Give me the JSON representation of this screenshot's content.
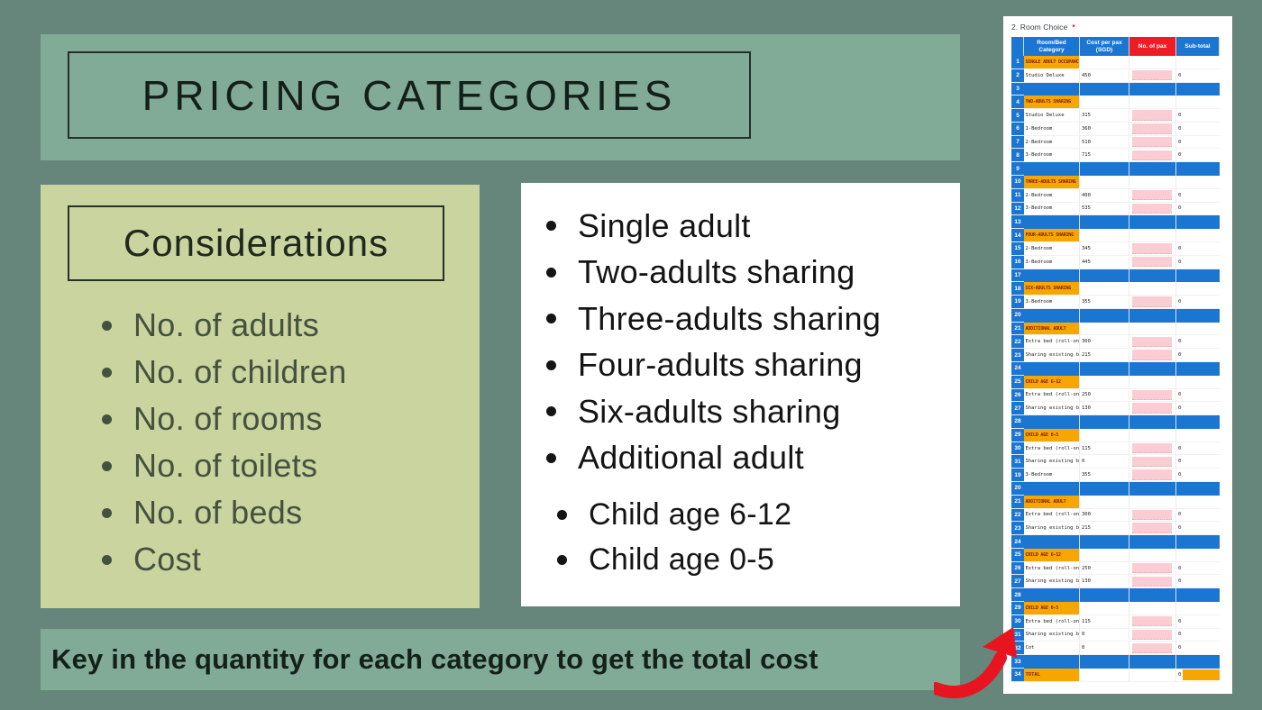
{
  "slide": {
    "title": "PRICING CATEGORIES",
    "considerations": {
      "heading": "Considerations",
      "items": [
        "No. of adults",
        "No. of children",
        "No. of rooms",
        "No. of toilets",
        "No. of beds",
        "Cost"
      ]
    },
    "categories_primary": [
      "Single adult",
      "Two-adults sharing",
      "Three-adults sharing",
      "Four-adults sharing",
      "Six-adults sharing",
      "Additional adult"
    ],
    "categories_secondary": [
      "Child age 6-12",
      "Child age 0-5"
    ],
    "footer": "Key in the quantity for each category to get the total cost"
  },
  "form": {
    "question_label": "2. Room Choice",
    "required_marker": "*",
    "columns": [
      "Room/Bed Category",
      "Cost per pax (SGD)",
      "No. of pax",
      "Sub-total"
    ],
    "rows": [
      {
        "num": "1",
        "type": "section",
        "label": "SINGLE ADULT OCCUPANCY"
      },
      {
        "num": "2",
        "type": "data",
        "label": "Studio Deluxe",
        "cost": "450",
        "subtotal": "0"
      },
      {
        "num": "3",
        "type": "separator"
      },
      {
        "num": "4",
        "type": "section",
        "label": "TWO-ADULTS SHARING"
      },
      {
        "num": "5",
        "type": "data",
        "label": "Studio Deluxe",
        "cost": "315",
        "subtotal": "0"
      },
      {
        "num": "6",
        "type": "data",
        "label": "1-Bedroom",
        "cost": "360",
        "subtotal": "0"
      },
      {
        "num": "7",
        "type": "data",
        "label": "2-Bedroom",
        "cost": "510",
        "subtotal": "0"
      },
      {
        "num": "8",
        "type": "data",
        "label": "3-Bedroom",
        "cost": "715",
        "subtotal": "0"
      },
      {
        "num": "9",
        "type": "separator"
      },
      {
        "num": "10",
        "type": "section",
        "label": "THREE-ADULTS SHARING"
      },
      {
        "num": "11",
        "type": "data",
        "label": "2-Bedroom",
        "cost": "400",
        "subtotal": "0"
      },
      {
        "num": "12",
        "type": "data",
        "label": "3-Bedroom",
        "cost": "535",
        "subtotal": "0"
      },
      {
        "num": "13",
        "type": "separator"
      },
      {
        "num": "14",
        "type": "section",
        "label": "FOUR-ADULTS SHARING"
      },
      {
        "num": "15",
        "type": "data",
        "label": "2-Bedroom",
        "cost": "345",
        "subtotal": "0"
      },
      {
        "num": "16",
        "type": "data",
        "label": "3-Bedroom",
        "cost": "445",
        "subtotal": "0"
      },
      {
        "num": "17",
        "type": "separator"
      },
      {
        "num": "18",
        "type": "section",
        "label": "SIX-ADULTS SHARING"
      },
      {
        "num": "19",
        "type": "data",
        "label": "3-Bedroom",
        "cost": "355",
        "subtotal": "0"
      },
      {
        "num": "20",
        "type": "separator"
      },
      {
        "num": "21",
        "type": "section",
        "label": "ADDITIONAL ADULT"
      },
      {
        "num": "22",
        "type": "data",
        "label": "Extra bed (roll-on)",
        "cost": "300",
        "subtotal": "0"
      },
      {
        "num": "23",
        "type": "data",
        "label": "Sharing existing beds",
        "cost": "215",
        "subtotal": "0"
      },
      {
        "num": "24",
        "type": "separator"
      },
      {
        "num": "25",
        "type": "section",
        "label": "CHILD AGE 6-12"
      },
      {
        "num": "26",
        "type": "data",
        "label": "Extra bed (roll-on)",
        "cost": "250",
        "subtotal": "0"
      },
      {
        "num": "27",
        "type": "data",
        "label": "Sharing existing beds",
        "cost": "130",
        "subtotal": "0"
      },
      {
        "num": "28",
        "type": "separator"
      },
      {
        "num": "29",
        "type": "section",
        "label": "CHILD AGE 0-5"
      },
      {
        "num": "30",
        "type": "data",
        "label": "Extra bed (roll-on)",
        "cost": "115",
        "subtotal": "0"
      },
      {
        "num": "31",
        "type": "data",
        "label": "Sharing existing beds",
        "cost": "0",
        "subtotal": "0"
      },
      {
        "num": "19",
        "type": "data",
        "label": "3-Bedroom",
        "cost": "355",
        "subtotal": "0"
      },
      {
        "num": "20",
        "type": "separator"
      },
      {
        "num": "21",
        "type": "section",
        "label": "ADDITIONAL ADULT"
      },
      {
        "num": "22",
        "type": "data",
        "label": "Extra bed (roll-on)",
        "cost": "300",
        "subtotal": "0"
      },
      {
        "num": "23",
        "type": "data",
        "label": "Sharing existing beds",
        "cost": "215",
        "subtotal": "0"
      },
      {
        "num": "24",
        "type": "separator"
      },
      {
        "num": "25",
        "type": "section",
        "label": "CHILD AGE 6-12"
      },
      {
        "num": "26",
        "type": "data",
        "label": "Extra bed (roll-on)",
        "cost": "250",
        "subtotal": "0"
      },
      {
        "num": "27",
        "type": "data",
        "label": "Sharing existing beds",
        "cost": "130",
        "subtotal": "0"
      },
      {
        "num": "28",
        "type": "separator"
      },
      {
        "num": "29",
        "type": "section",
        "label": "CHILD AGE 0-5"
      },
      {
        "num": "30",
        "type": "data",
        "label": "Extra bed (roll-on)",
        "cost": "115",
        "subtotal": "0"
      },
      {
        "num": "31",
        "type": "data",
        "label": "Sharing existing beds",
        "cost": "0",
        "subtotal": "0"
      },
      {
        "num": "32",
        "type": "data",
        "label": "Cot",
        "cost": "0",
        "subtotal": "0"
      },
      {
        "num": "33",
        "type": "separator"
      },
      {
        "num": "34",
        "type": "total",
        "label": "TOTAL",
        "subtotal": "0"
      }
    ]
  },
  "colors": {
    "slide_background": "#67867b",
    "panel_green": "#81ab96",
    "panel_olive": "#c9d49e",
    "header_blue": "#1b76d2",
    "header_red": "#ee1c25",
    "section_orange": "#f7a600",
    "section_text": "#7e1d04",
    "input_pink": "#f9cdd3",
    "arrow_red": "#e8141f"
  }
}
